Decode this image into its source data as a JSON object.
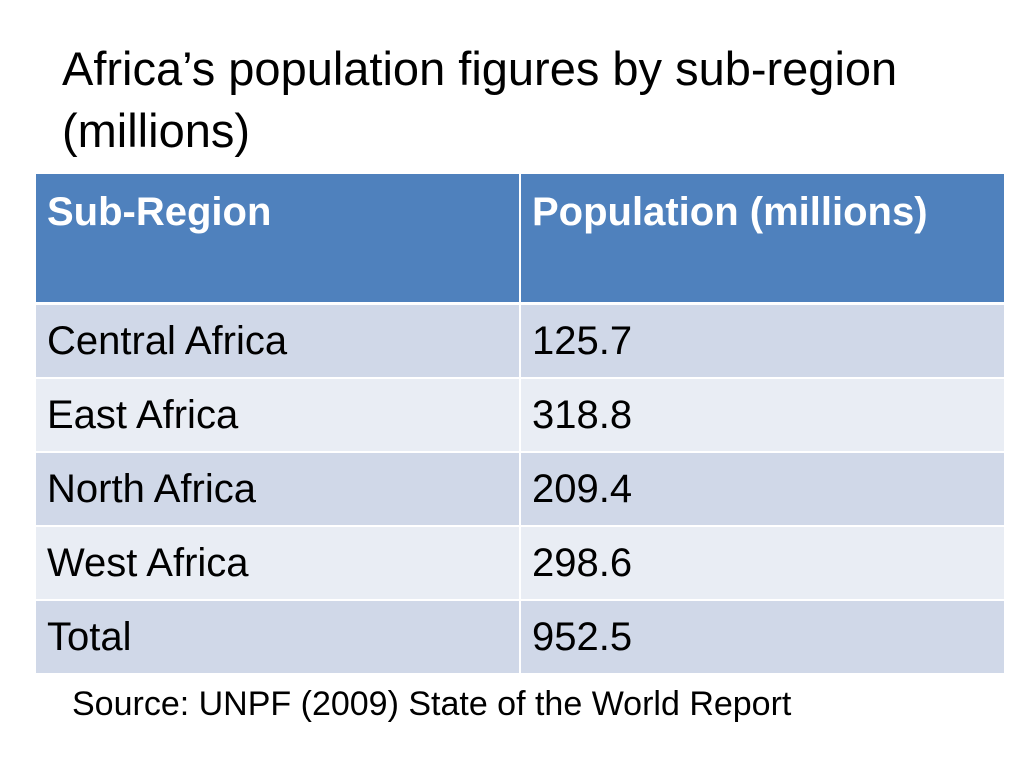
{
  "title": "Africa’s population figures by sub-region (millions)",
  "table": {
    "headers": [
      "Sub-Region",
      "Population (millions)"
    ],
    "rows": [
      [
        "Central Africa",
        "125.7"
      ],
      [
        "East Africa",
        "318.8"
      ],
      [
        "North Africa",
        "209.4"
      ],
      [
        "West Africa",
        "298.6"
      ],
      [
        "Total",
        "952.5"
      ]
    ]
  },
  "source": "Source: UNPF (2009) State of the World Report",
  "colors": {
    "header_bg": "#4f81bd",
    "row_odd_bg": "#d0d8e8",
    "row_even_bg": "#e9edf4"
  }
}
